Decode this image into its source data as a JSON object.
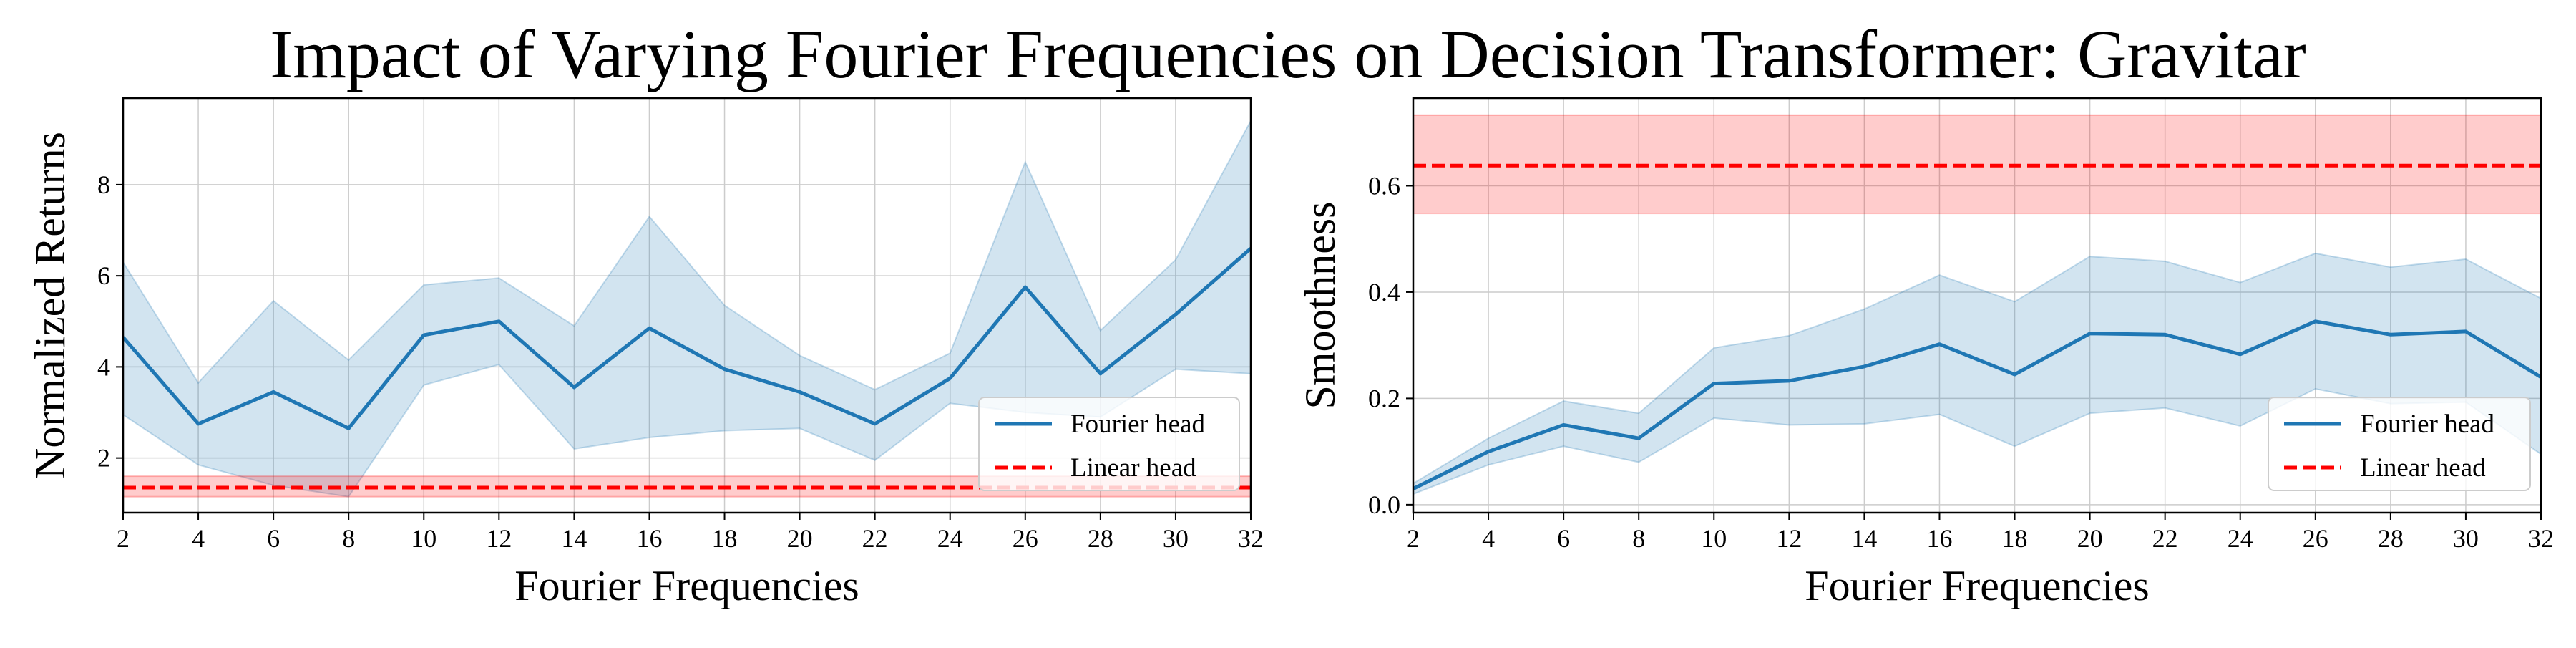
{
  "title": "Impact of Varying Fourier Frequencies on Decision Transformer: Gravitar",
  "colors": {
    "fourier_line": "#1f77b4",
    "fourier_band": "#1f77b4",
    "linear_line": "#ff0000",
    "linear_band": "#ff0000",
    "grid": "#cccccc",
    "axes": "#000000"
  },
  "chart_data": [
    {
      "type": "line",
      "title": "",
      "xlabel": "Fourier Frequencies",
      "ylabel": "Normalized Returns",
      "x": [
        2,
        4,
        6,
        8,
        10,
        12,
        14,
        16,
        18,
        20,
        22,
        24,
        26,
        28,
        30,
        32
      ],
      "xlim": [
        2,
        32
      ],
      "ylim": [
        0.8,
        9.9
      ],
      "xticks": [
        2,
        4,
        6,
        8,
        10,
        12,
        14,
        16,
        18,
        20,
        22,
        24,
        26,
        28,
        30,
        32
      ],
      "yticks": [
        2,
        4,
        6,
        8
      ],
      "grid": true,
      "legend_position": "lower-right",
      "series": [
        {
          "name": "Fourier head",
          "style": "solid",
          "values": [
            4.65,
            2.75,
            3.45,
            2.65,
            4.7,
            5.0,
            3.55,
            4.85,
            3.95,
            3.45,
            2.75,
            3.75,
            5.75,
            3.85,
            5.15,
            6.6
          ],
          "lower": [
            2.95,
            1.85,
            1.4,
            1.15,
            3.6,
            4.05,
            2.2,
            2.45,
            2.6,
            2.65,
            1.95,
            3.2,
            3.0,
            2.9,
            3.95,
            3.85
          ],
          "upper": [
            6.3,
            3.65,
            5.45,
            4.15,
            5.8,
            5.95,
            4.9,
            7.3,
            5.35,
            4.25,
            3.5,
            4.3,
            8.5,
            4.8,
            6.35,
            9.4
          ]
        },
        {
          "name": "Linear head",
          "style": "dashed",
          "constant": 1.35,
          "band": [
            1.15,
            1.6
          ]
        }
      ]
    },
    {
      "type": "line",
      "title": "",
      "xlabel": "Fourier Frequencies",
      "ylabel": "Smoothness",
      "x": [
        2,
        4,
        6,
        8,
        10,
        12,
        14,
        16,
        18,
        20,
        22,
        24,
        26,
        28,
        30,
        32
      ],
      "xlim": [
        2,
        32
      ],
      "ylim": [
        -0.015,
        0.765
      ],
      "xticks": [
        2,
        4,
        6,
        8,
        10,
        12,
        14,
        16,
        18,
        20,
        22,
        24,
        26,
        28,
        30,
        32
      ],
      "yticks": [
        0.0,
        0.2,
        0.4,
        0.6
      ],
      "ytick_labels": [
        "0.0",
        "0.2",
        "0.4",
        "0.6"
      ],
      "grid": true,
      "legend_position": "lower-right",
      "series": [
        {
          "name": "Fourier head",
          "style": "solid",
          "values": [
            0.03,
            0.1,
            0.15,
            0.125,
            0.228,
            0.233,
            0.26,
            0.302,
            0.245,
            0.322,
            0.32,
            0.283,
            0.345,
            0.32,
            0.326,
            0.24
          ],
          "lower": [
            0.02,
            0.075,
            0.11,
            0.08,
            0.163,
            0.15,
            0.152,
            0.17,
            0.11,
            0.172,
            0.182,
            0.148,
            0.218,
            0.19,
            0.193,
            0.095
          ],
          "upper": [
            0.04,
            0.125,
            0.195,
            0.172,
            0.295,
            0.318,
            0.368,
            0.432,
            0.382,
            0.467,
            0.458,
            0.418,
            0.473,
            0.447,
            0.462,
            0.388
          ]
        },
        {
          "name": "Linear head",
          "style": "dashed",
          "constant": 0.638,
          "band": [
            0.548,
            0.733
          ]
        }
      ]
    }
  ]
}
